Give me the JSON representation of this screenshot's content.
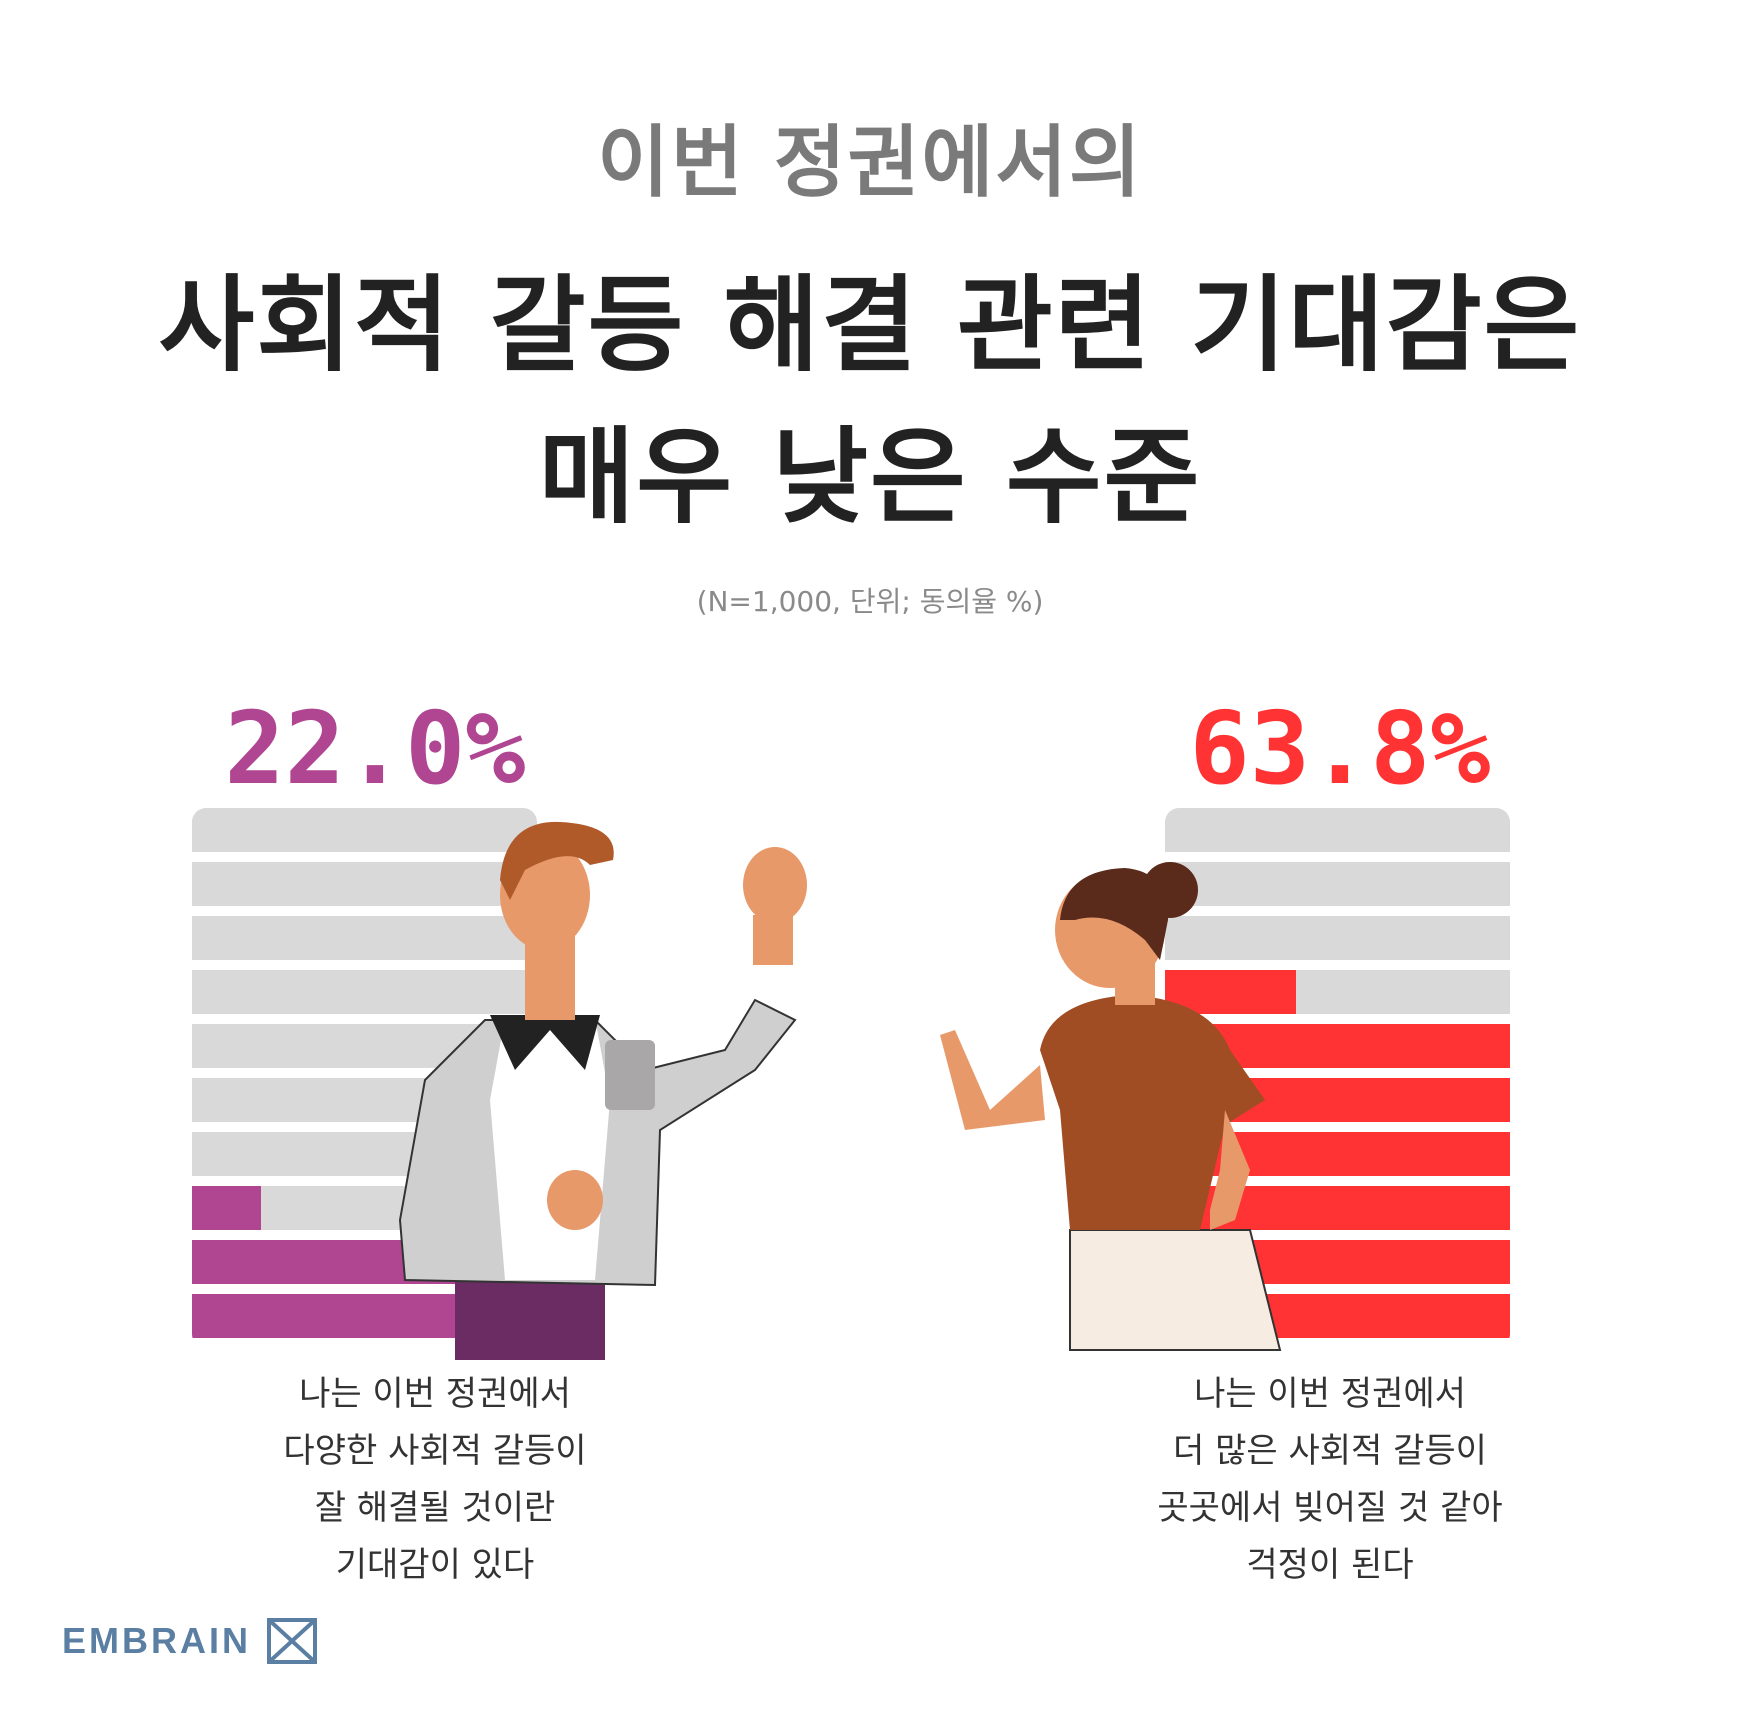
{
  "title": {
    "line0": "이번 정권에서의",
    "line1": "사회적 갈등 해결 관련 기대감은",
    "line2": "매우 낮은 수준"
  },
  "note": "(N=1,000, 단위; 동의율 %)",
  "logo_text": "EMBRAIN",
  "colors": {
    "left": "#b04592",
    "right": "#ff3333",
    "track": "#d9d9d9"
  },
  "chart_data": [
    {
      "type": "bar",
      "value": 22.0,
      "value_label": "22.0%",
      "unit": "%",
      "ylim": [
        0,
        100
      ],
      "caption": [
        "나는 이번 정권에서",
        "다양한 사회적 갈등이",
        "잘 해결될 것이란",
        "기대감이 있다"
      ]
    },
    {
      "type": "bar",
      "value": 63.8,
      "value_label": "63.8%",
      "unit": "%",
      "ylim": [
        0,
        100
      ],
      "caption": [
        "나는 이번 정권에서",
        "더 많은 사회적 갈등이",
        "곳곳에서 빚어질 것 같아",
        "걱정이 된다"
      ]
    }
  ]
}
